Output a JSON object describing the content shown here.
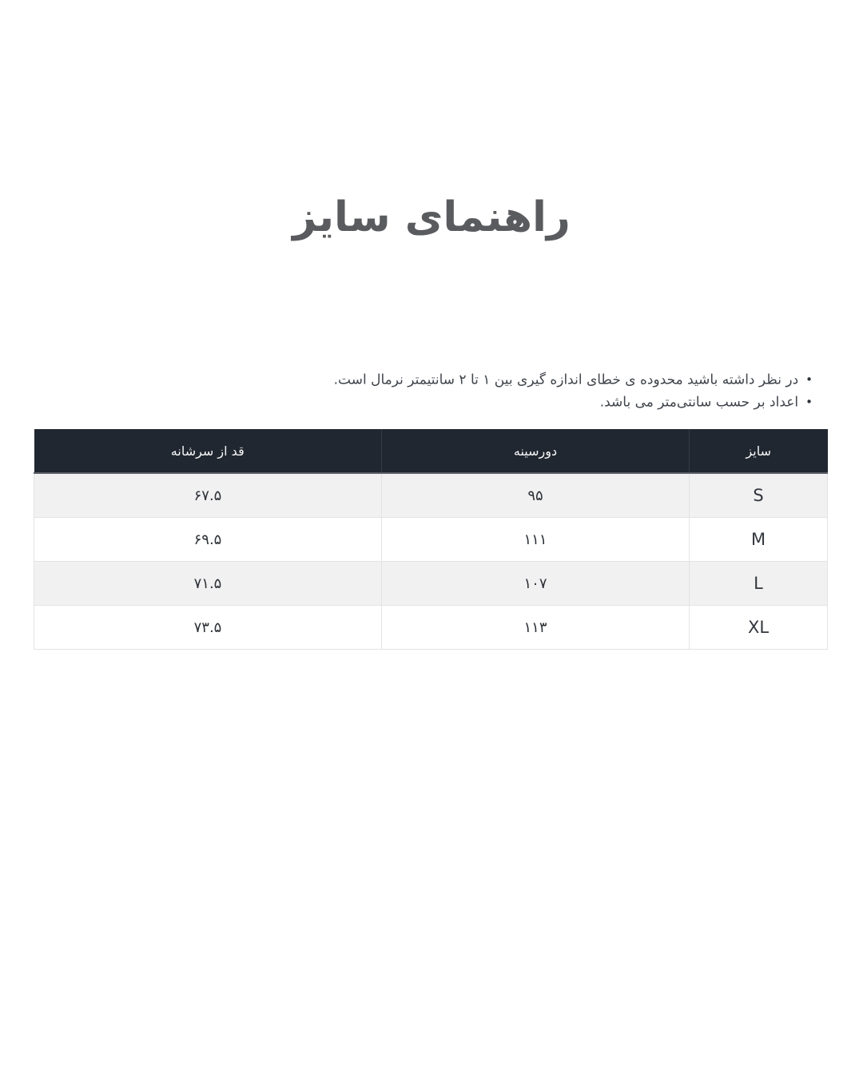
{
  "page": {
    "title": "راهنمای سایز"
  },
  "notes": {
    "bullet_glyph": "•",
    "items": [
      "در نظر داشته باشید محدوده ی خطای اندازه گیری بین ۱ تا ۲ سانتیمتر نرمال است.",
      "اعداد بر حسب سانتی‌متر می باشد."
    ]
  },
  "size_table": {
    "columns": [
      {
        "key": "size",
        "label": "سایز"
      },
      {
        "key": "chest",
        "label": "دورسینه"
      },
      {
        "key": "height_from_shoulder",
        "label": "قد از سرشانه"
      }
    ],
    "rows": [
      {
        "size": "S",
        "chest": "۹۵",
        "height_from_shoulder": "۶۷.۵"
      },
      {
        "size": "M",
        "chest": "۱۱۱",
        "height_from_shoulder": "۶۹.۵"
      },
      {
        "size": "L",
        "chest": "۱۰۷",
        "height_from_shoulder": "۷۱.۵"
      },
      {
        "size": "XL",
        "chest": "۱۱۳",
        "height_from_shoulder": "۷۳.۵"
      }
    ]
  },
  "colors": {
    "header_bg": "#212730",
    "header_text": "#f5f6f8",
    "row_stripe": "#f1f1f2",
    "body_text": "#2e3237",
    "title_text": "#5a5b5e",
    "border": "#e3e3e4"
  }
}
